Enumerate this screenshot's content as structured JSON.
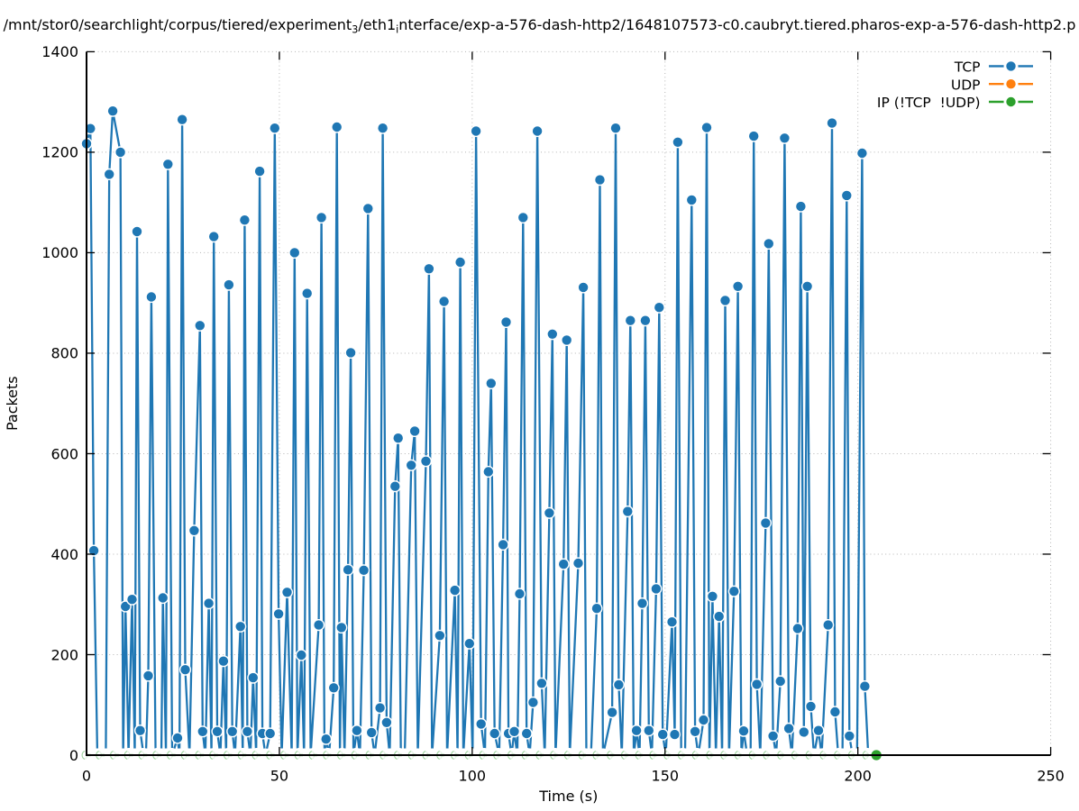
{
  "title": {
    "text": "/mnt/stor0/searchlight/corpus/tiered/experiment3/eth1interface/exp-a-576-dash-http2/1648107573-c0.caubryt.tiered.pharos-exp-a-576-dash-http2.p",
    "segments": [
      {
        "t": "/mnt/stor0/searchlight/corpus/tiered/experiment",
        "sub": false
      },
      {
        "t": "3",
        "sub": true
      },
      {
        "t": "/eth1",
        "sub": false
      },
      {
        "t": "i",
        "sub": true
      },
      {
        "t": "nterface/exp-a-576-dash-http2/1648107573-c0.caubryt.tiered.pharos-exp-a-576-dash-http2.p",
        "sub": false
      }
    ]
  },
  "chart_data": {
    "type": "line",
    "title": "/mnt/stor0/searchlight/corpus/tiered/experiment3/eth1interface/exp-a-576-dash-http2/1648107573-c0.caubryt.tiered.pharos-exp-a-576-dash-http2.p",
    "xlabel": "Time (s)",
    "ylabel": "Packets",
    "xlim": [
      0,
      250
    ],
    "ylim": [
      0,
      1400
    ],
    "xticks": [
      0,
      50,
      100,
      150,
      200,
      250
    ],
    "yticks": [
      0,
      200,
      400,
      600,
      800,
      1000,
      1200,
      1400
    ],
    "grid": "dotted major gridlines both axes",
    "legend_position": "upper right, no frame",
    "series": [
      {
        "name": "TCP",
        "color": "#1f77b4",
        "style": "solid line with filled circle markers (white edged), markers only on nonzero values",
        "points": [
          [
            0.0,
            1217
          ],
          [
            1.0,
            1247
          ],
          [
            1.9,
            407
          ],
          [
            2.8,
            0
          ],
          [
            3.9,
            0
          ],
          [
            5.0,
            0
          ],
          [
            5.9,
            1156
          ],
          [
            6.8,
            1282
          ],
          [
            8.8,
            1200
          ],
          [
            9.5,
            0
          ],
          [
            10.1,
            296
          ],
          [
            10.9,
            0
          ],
          [
            11.8,
            310
          ],
          [
            12.5,
            0
          ],
          [
            13.1,
            1042
          ],
          [
            13.9,
            49
          ],
          [
            14.8,
            0
          ],
          [
            15.4,
            0
          ],
          [
            16.0,
            158
          ],
          [
            16.8,
            912
          ],
          [
            17.9,
            0
          ],
          [
            19.4,
            0
          ],
          [
            19.8,
            313
          ],
          [
            20.6,
            0
          ],
          [
            21.1,
            1176
          ],
          [
            22.2,
            0
          ],
          [
            23.6,
            34
          ],
          [
            24.1,
            0
          ],
          [
            24.8,
            1265
          ],
          [
            25.6,
            170
          ],
          [
            26.7,
            0
          ],
          [
            27.9,
            447
          ],
          [
            29.4,
            855
          ],
          [
            30.1,
            47
          ],
          [
            30.8,
            0
          ],
          [
            31.7,
            302
          ],
          [
            32.4,
            0
          ],
          [
            33.0,
            1032
          ],
          [
            33.9,
            47
          ],
          [
            34.7,
            0
          ],
          [
            35.5,
            187
          ],
          [
            36.2,
            0
          ],
          [
            36.9,
            936
          ],
          [
            37.8,
            47
          ],
          [
            38.5,
            0
          ],
          [
            39.9,
            256
          ],
          [
            40.5,
            0
          ],
          [
            41.0,
            1065
          ],
          [
            41.7,
            47
          ],
          [
            42.5,
            0
          ],
          [
            43.2,
            154
          ],
          [
            44.0,
            0
          ],
          [
            44.9,
            1162
          ],
          [
            45.6,
            43
          ],
          [
            46.4,
            0
          ],
          [
            47.6,
            43
          ],
          [
            48.8,
            1248
          ],
          [
            49.8,
            281
          ],
          [
            50.6,
            0
          ],
          [
            52.0,
            324
          ],
          [
            53.2,
            0
          ],
          [
            53.95,
            1000
          ],
          [
            54.7,
            0
          ],
          [
            55.7,
            199
          ],
          [
            56.4,
            0
          ],
          [
            57.2,
            919
          ],
          [
            58.1,
            0
          ],
          [
            60.2,
            259
          ],
          [
            60.9,
            1070
          ],
          [
            61.7,
            0
          ],
          [
            62.1,
            32
          ],
          [
            62.9,
            0
          ],
          [
            64.1,
            134
          ],
          [
            64.9,
            1250
          ],
          [
            65.7,
            0
          ],
          [
            66.1,
            254
          ],
          [
            66.9,
            0
          ],
          [
            67.8,
            369
          ],
          [
            68.5,
            801
          ],
          [
            69.2,
            0
          ],
          [
            70.1,
            49
          ],
          [
            70.9,
            0
          ],
          [
            71.9,
            368
          ],
          [
            73.0,
            1088
          ],
          [
            73.9,
            45
          ],
          [
            74.7,
            0
          ],
          [
            76.1,
            94
          ],
          [
            76.8,
            1248
          ],
          [
            77.8,
            65
          ],
          [
            78.6,
            0
          ],
          [
            80.0,
            535
          ],
          [
            80.8,
            631
          ],
          [
            81.5,
            0
          ],
          [
            82.5,
            0
          ],
          [
            84.2,
            577
          ],
          [
            85.1,
            645
          ],
          [
            85.9,
            0
          ],
          [
            88.0,
            585
          ],
          [
            88.8,
            968
          ],
          [
            89.6,
            0
          ],
          [
            91.6,
            238
          ],
          [
            92.7,
            903
          ],
          [
            93.5,
            0
          ],
          [
            95.5,
            328
          ],
          [
            96.2,
            0
          ],
          [
            96.9,
            981
          ],
          [
            97.7,
            0
          ],
          [
            99.3,
            222
          ],
          [
            100.1,
            0
          ],
          [
            101.0,
            1242
          ],
          [
            102.3,
            62
          ],
          [
            103.3,
            0
          ],
          [
            104.2,
            564
          ],
          [
            104.9,
            740
          ],
          [
            105.8,
            43
          ],
          [
            107.0,
            0
          ],
          [
            108.0,
            419
          ],
          [
            108.8,
            862
          ],
          [
            109.4,
            43
          ],
          [
            110.2,
            0
          ],
          [
            110.9,
            47
          ],
          [
            111.7,
            0
          ],
          [
            112.3,
            321
          ],
          [
            113.2,
            1070
          ],
          [
            114.1,
            43
          ],
          [
            114.9,
            0
          ],
          [
            115.8,
            105
          ],
          [
            116.9,
            1242
          ],
          [
            118.0,
            143
          ],
          [
            118.8,
            0
          ],
          [
            120.0,
            482
          ],
          [
            120.8,
            838
          ],
          [
            121.6,
            0
          ],
          [
            123.7,
            380
          ],
          [
            124.5,
            826
          ],
          [
            125.3,
            0
          ],
          [
            127.5,
            382
          ],
          [
            128.8,
            931
          ],
          [
            129.6,
            0
          ],
          [
            130.8,
            0
          ],
          [
            132.3,
            292
          ],
          [
            133.1,
            1145
          ],
          [
            133.9,
            0
          ],
          [
            136.3,
            85
          ],
          [
            137.2,
            1248
          ],
          [
            138.0,
            140
          ],
          [
            138.8,
            0
          ],
          [
            140.3,
            485
          ],
          [
            141.0,
            865
          ],
          [
            141.9,
            0
          ],
          [
            142.6,
            49
          ],
          [
            143.4,
            0
          ],
          [
            144.1,
            302
          ],
          [
            144.9,
            865
          ],
          [
            145.8,
            49
          ],
          [
            146.6,
            0
          ],
          [
            147.7,
            331
          ],
          [
            148.5,
            891
          ],
          [
            149.4,
            41
          ],
          [
            150.2,
            0
          ],
          [
            151.8,
            265
          ],
          [
            152.5,
            41
          ],
          [
            153.3,
            1220
          ],
          [
            154.2,
            0
          ],
          [
            155.2,
            0
          ],
          [
            156.9,
            1105
          ],
          [
            157.8,
            47
          ],
          [
            158.6,
            0
          ],
          [
            160.0,
            70
          ],
          [
            160.8,
            1249
          ],
          [
            161.5,
            0
          ],
          [
            162.3,
            316
          ],
          [
            163.2,
            0
          ],
          [
            164.0,
            276
          ],
          [
            164.8,
            0
          ],
          [
            165.6,
            905
          ],
          [
            166.6,
            0
          ],
          [
            167.9,
            326
          ],
          [
            168.9,
            933
          ],
          [
            169.8,
            0
          ],
          [
            170.4,
            48
          ],
          [
            171.3,
            0
          ],
          [
            172.2,
            0
          ],
          [
            173.0,
            1232
          ],
          [
            173.8,
            141
          ],
          [
            174.7,
            0
          ],
          [
            176.1,
            462
          ],
          [
            176.9,
            1018
          ],
          [
            178.0,
            38
          ],
          [
            178.8,
            0
          ],
          [
            179.9,
            147
          ],
          [
            181.0,
            1228
          ],
          [
            182.1,
            53
          ],
          [
            182.9,
            0
          ],
          [
            184.4,
            252
          ],
          [
            185.2,
            1092
          ],
          [
            186.0,
            46
          ],
          [
            186.9,
            933
          ],
          [
            187.8,
            97
          ],
          [
            188.6,
            0
          ],
          [
            189.8,
            49
          ],
          [
            190.6,
            0
          ],
          [
            192.3,
            259
          ],
          [
            193.3,
            1258
          ],
          [
            194.1,
            86
          ],
          [
            194.9,
            0
          ],
          [
            196.0,
            0
          ],
          [
            197.1,
            1114
          ],
          [
            197.8,
            38
          ],
          [
            198.6,
            0
          ],
          [
            199.8,
            0
          ],
          [
            201.1,
            1198
          ],
          [
            201.8,
            137
          ],
          [
            202.7,
            0
          ]
        ]
      },
      {
        "name": "UDP",
        "color": "#ff7f0e",
        "style": "not visible in plot (hidden under IP series at zero)",
        "points": []
      },
      {
        "name": "IP (!TCP  !UDP)",
        "color": "#2ca02c",
        "style": "dashed line at zero with ring marks, final point solid dot",
        "points": [
          [
            204.8,
            0
          ]
        ],
        "zero_line": {
          "from": 0.0,
          "to": 204.8
        },
        "zero_markers": {
          "from": 0.0,
          "to": 202.5,
          "step": 3.681
        }
      }
    ]
  },
  "legend": {
    "entries": [
      {
        "label": "TCP",
        "color": "#1f77b4"
      },
      {
        "label": "UDP",
        "color": "#ff7f0e"
      },
      {
        "label": "IP (!TCP  !UDP)",
        "color": "#2ca02c"
      }
    ]
  },
  "colors": {
    "background": "#ffffff",
    "tcp": "#1f77b4",
    "udp": "#ff7f0e",
    "ip": "#2ca02c",
    "grid": "#b5b5b5",
    "axis": "#000000",
    "text": "#000000"
  }
}
